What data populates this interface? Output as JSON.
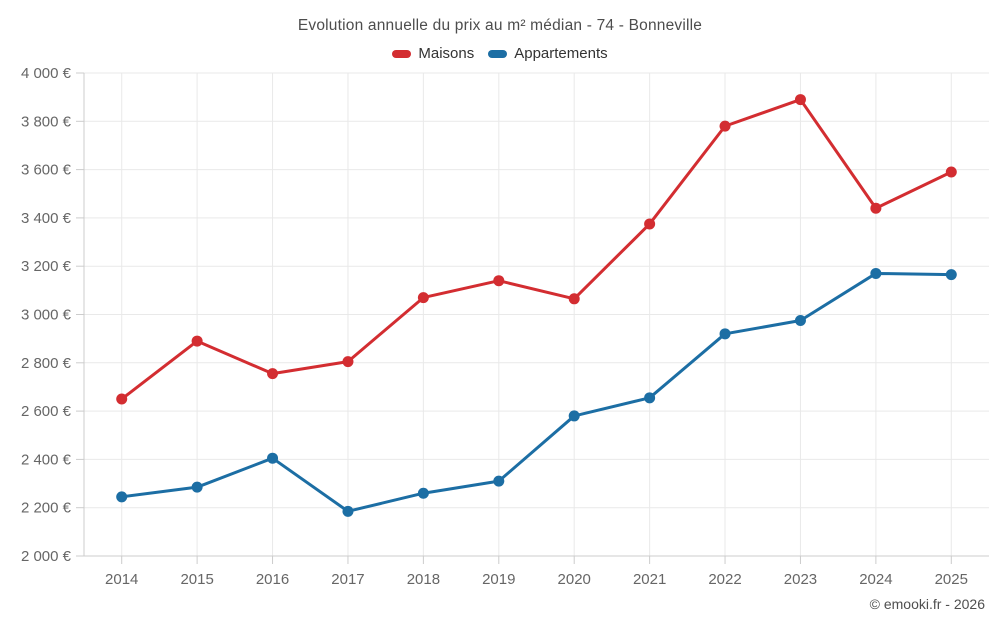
{
  "header": {
    "title": "Evolution annuelle du prix au m² médian - 74 - Bonneville"
  },
  "legend": [
    {
      "label": "Maisons",
      "color": "#d32d31"
    },
    {
      "label": "Appartements",
      "color": "#1c6ea4"
    }
  ],
  "footer": {
    "credit": "© emooki.fr - 2026"
  },
  "chart_data": {
    "type": "line",
    "title": "Evolution annuelle du prix au m² médian - 74 - Bonneville",
    "categories": [
      "2014",
      "2015",
      "2016",
      "2017",
      "2018",
      "2019",
      "2020",
      "2021",
      "2022",
      "2023",
      "2024",
      "2025"
    ],
    "series": [
      {
        "name": "Maisons",
        "color": "#d32d31",
        "values": [
          2650,
          2890,
          2755,
          2805,
          3070,
          3140,
          3065,
          3375,
          3780,
          3890,
          3440,
          3590
        ]
      },
      {
        "name": "Appartements",
        "color": "#1c6ea4",
        "values": [
          2245,
          2285,
          2405,
          2185,
          2260,
          2310,
          2580,
          2655,
          2920,
          2975,
          3170,
          3165
        ]
      }
    ],
    "xlabel": "",
    "ylabel": "",
    "ylim": [
      2000,
      4000
    ],
    "ytick_step": 200,
    "ytick_suffix": " €",
    "grid": true,
    "legend_position": "top",
    "axis_color": "#cccccc",
    "grid_color": "#e9e9e9",
    "tick_label_color": "#666666"
  }
}
